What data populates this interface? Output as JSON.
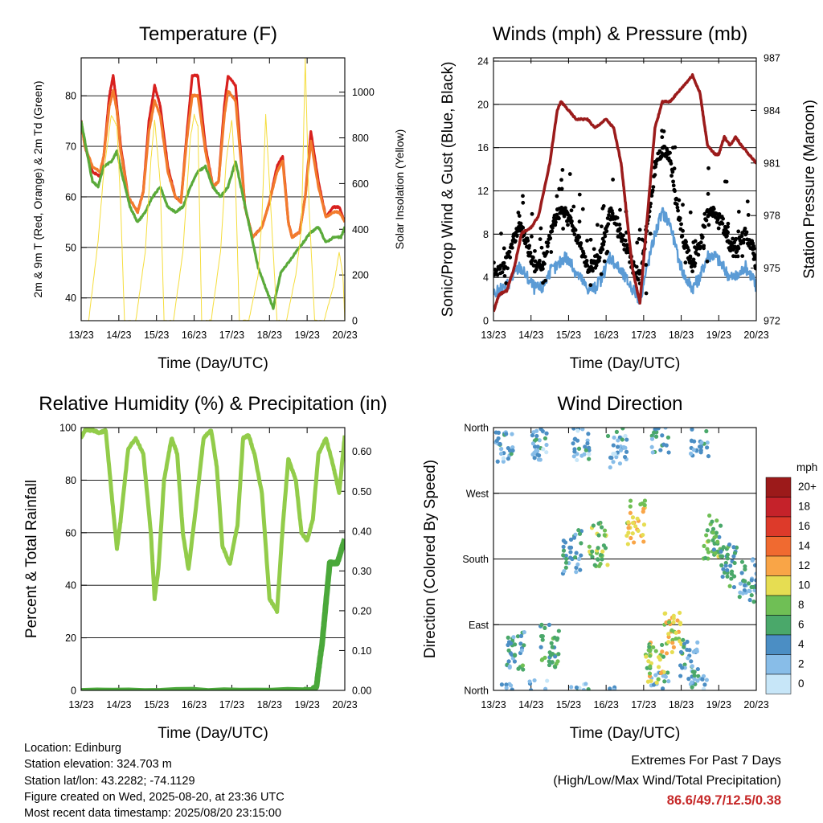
{
  "chart_data": [
    {
      "id": "temperature",
      "type": "line",
      "title": "Temperature (F)",
      "xlabel": "Time (Day/UTC)",
      "ylabel": "2m & 9m T (Red, Orange) & 2m Td (Green)",
      "y2label": "Solar Insolation (Yellow)",
      "x_ticks": [
        "13/23",
        "14/23",
        "15/23",
        "16/23",
        "17/23",
        "18/23",
        "19/23",
        "20/23"
      ],
      "y_ticks": [
        40,
        50,
        60,
        70,
        80
      ],
      "y2_ticks": [
        0,
        200,
        400,
        600,
        800,
        1000
      ],
      "ylim": [
        35.5,
        87.5
      ],
      "y2lim": [
        0,
        1150
      ],
      "xlim": [
        0,
        7
      ],
      "grid": true,
      "series": [
        {
          "color": "#d8201e",
          "x": [
            0,
            0.1,
            0.3,
            0.5,
            0.6,
            0.75,
            0.85,
            0.95,
            1.05,
            1.25,
            1.5,
            1.65,
            1.8,
            1.95,
            2.1,
            2.3,
            2.5,
            2.65,
            2.8,
            2.95,
            3.1,
            3.3,
            3.5,
            3.65,
            3.8,
            3.9,
            4.1,
            4.35,
            4.55,
            4.8,
            5.0,
            5.2,
            5.35,
            5.5,
            5.6,
            5.8,
            5.95,
            6.1,
            6.3,
            6.5,
            6.7,
            6.85,
            7.0
          ],
          "values": [
            75,
            70,
            65,
            64,
            68,
            80,
            84,
            78,
            70,
            60,
            57,
            61,
            75,
            82,
            78,
            66,
            60,
            59,
            72,
            84,
            84,
            70,
            62,
            63,
            78,
            84,
            82,
            58,
            52,
            54,
            59,
            66,
            68,
            55,
            52,
            53,
            60,
            73,
            63,
            56,
            58,
            58,
            55
          ]
        },
        {
          "color": "#f27b2d",
          "x": [
            0,
            0.1,
            0.3,
            0.5,
            0.6,
            0.75,
            0.85,
            0.95,
            1.05,
            1.25,
            1.5,
            1.65,
            1.8,
            1.95,
            2.1,
            2.3,
            2.5,
            2.65,
            2.8,
            2.95,
            3.1,
            3.3,
            3.5,
            3.65,
            3.8,
            3.9,
            4.1,
            4.35,
            4.55,
            4.8,
            5.0,
            5.2,
            5.35,
            5.5,
            5.6,
            5.8,
            5.95,
            6.1,
            6.3,
            6.5,
            6.7,
            6.85,
            7.0
          ],
          "values": [
            75,
            70,
            66,
            65,
            68,
            78,
            81,
            77,
            69,
            60,
            57,
            61,
            73,
            79,
            76,
            65,
            60,
            59,
            71,
            80,
            80,
            69,
            62,
            63,
            76,
            81,
            79,
            58,
            52,
            54,
            59,
            65,
            67,
            55,
            52,
            53,
            60,
            71,
            62,
            56,
            57,
            57,
            55
          ]
        },
        {
          "color": "#5aaa3a",
          "x": [
            0,
            0.15,
            0.3,
            0.45,
            0.6,
            0.8,
            0.95,
            1.1,
            1.3,
            1.5,
            1.7,
            1.9,
            2.1,
            2.3,
            2.5,
            2.7,
            2.9,
            3.1,
            3.3,
            3.5,
            3.7,
            3.9,
            4.1,
            4.3,
            4.5,
            4.7,
            4.9,
            5.1,
            5.3,
            5.5,
            5.7,
            5.9,
            6.1,
            6.3,
            6.5,
            6.7,
            6.9,
            7.0
          ],
          "values": [
            75,
            69,
            63,
            62,
            66,
            67,
            69,
            64,
            58,
            55,
            57,
            60,
            62,
            58,
            57,
            58,
            62,
            65,
            66,
            62,
            60,
            62,
            67,
            60,
            53,
            46,
            42,
            38,
            45,
            47,
            49,
            51,
            53,
            54,
            51,
            52,
            52,
            54
          ]
        },
        {
          "color": "#f5dd3c",
          "axis": "y2",
          "x": [
            0.2,
            0.45,
            0.6,
            0.8,
            0.95,
            1.05,
            1.15,
            1.45,
            1.7,
            1.85,
            1.95,
            2.1,
            2.2,
            2.45,
            2.7,
            2.9,
            3.0,
            3.1,
            3.2,
            3.45,
            3.7,
            3.85,
            4.0,
            4.1,
            4.2,
            4.45,
            4.7,
            4.8,
            4.9,
            5.0,
            5.2,
            5.45,
            5.7,
            5.85,
            5.95,
            6.05,
            6.2,
            6.45,
            6.7,
            6.85,
            6.95,
            7.0
          ],
          "values": [
            0,
            350,
            650,
            900,
            850,
            500,
            0,
            0,
            300,
            700,
            880,
            600,
            0,
            0,
            300,
            800,
            900,
            850,
            0,
            0,
            300,
            700,
            880,
            600,
            0,
            0,
            200,
            450,
            900,
            600,
            0,
            0,
            200,
            400,
            1150,
            500,
            0,
            0,
            150,
            300,
            200,
            0
          ]
        }
      ]
    },
    {
      "id": "winds",
      "type": "line",
      "title": "Winds (mph) & Pressure (mb)",
      "xlabel": "Time (Day/UTC)",
      "ylabel": "Sonic/Prop Wind & Gust (Blue, Black)",
      "y2label": "Station Pressure (Maroon)",
      "x_ticks": [
        "13/23",
        "14/23",
        "15/23",
        "16/23",
        "17/23",
        "18/23",
        "19/23",
        "20/23"
      ],
      "y_ticks": [
        0,
        4,
        8,
        12,
        16,
        20,
        24
      ],
      "y2_ticks": [
        972,
        975,
        978,
        981,
        984,
        987
      ],
      "ylim": [
        0,
        24.3
      ],
      "y2lim": [
        972,
        987
      ],
      "xlim": [
        0,
        7
      ],
      "grid": true,
      "series": [
        {
          "color": "#5b9bd5",
          "x": [
            0,
            0.3,
            0.5,
            0.7,
            0.9,
            1.1,
            1.3,
            1.5,
            1.7,
            1.9,
            2.1,
            2.3,
            2.5,
            2.7,
            2.9,
            3.1,
            3.3,
            3.5,
            3.7,
            3.9,
            4.1,
            4.3,
            4.5,
            4.7,
            4.9,
            5.1,
            5.3,
            5.5,
            5.7,
            5.9,
            6.1,
            6.3,
            6.5,
            6.7,
            6.9,
            7.0
          ],
          "values": [
            2.5,
            3,
            4,
            5,
            4,
            3,
            3,
            4.5,
            5,
            6,
            5,
            4,
            3,
            3,
            4,
            6,
            5,
            4,
            3,
            2,
            5,
            8,
            10,
            9,
            6,
            4,
            3,
            4,
            6,
            6,
            5,
            4,
            4,
            5,
            4,
            3
          ]
        },
        {
          "color": "#000000",
          "x": [
            0,
            0.3,
            0.5,
            0.7,
            0.9,
            1.1,
            1.3,
            1.5,
            1.7,
            1.9,
            2.1,
            2.3,
            2.5,
            2.7,
            2.9,
            3.1,
            3.3,
            3.5,
            3.7,
            3.9,
            4.1,
            4.3,
            4.5,
            4.7,
            4.9,
            5.1,
            5.3,
            5.5,
            5.7,
            5.9,
            6.1,
            6.3,
            6.5,
            6.7,
            6.9,
            7.0
          ],
          "values": [
            4,
            5,
            7,
            9,
            7,
            5,
            5,
            8,
            10,
            10,
            9,
            7,
            5,
            5,
            7,
            10,
            9,
            7,
            5,
            4,
            9,
            14,
            16,
            15,
            10,
            7,
            5,
            7,
            10,
            10,
            9,
            7,
            7,
            8,
            7,
            5
          ]
        },
        {
          "color": "#9b1b1b",
          "axis": "y2",
          "x": [
            0,
            0.15,
            0.35,
            0.55,
            0.75,
            1.0,
            1.2,
            1.5,
            1.7,
            1.8,
            2.0,
            2.2,
            2.5,
            2.7,
            3.0,
            3.2,
            3.4,
            3.5,
            3.6,
            3.7,
            3.8,
            3.9,
            4.1,
            4.3,
            4.5,
            4.7,
            4.9,
            5.1,
            5.3,
            5.5,
            5.6,
            5.7,
            5.9,
            6.0,
            6.15,
            6.3,
            6.45,
            6.6,
            6.8,
            7.0
          ],
          "values": [
            972.5,
            973.5,
            973.7,
            975,
            977,
            977.3,
            978,
            981,
            984,
            984.5,
            984,
            983.5,
            983.5,
            983,
            983.5,
            983,
            981,
            979,
            977,
            975,
            974,
            973,
            978,
            983,
            984.5,
            984.5,
            985,
            985.5,
            986,
            985,
            983.5,
            982,
            981.5,
            981.5,
            982.5,
            982,
            982.5,
            982,
            981.5,
            981
          ]
        }
      ]
    },
    {
      "id": "humidity",
      "type": "line",
      "title": "Relative Humidity (%) & Precipitation (in)",
      "xlabel": "Time (Day/UTC)",
      "ylabel": "Percent & Total Rainfall",
      "x_ticks": [
        "13/23",
        "14/23",
        "15/23",
        "16/23",
        "17/23",
        "18/23",
        "19/23",
        "20/23"
      ],
      "y_ticks": [
        0,
        20,
        40,
        60,
        80,
        100
      ],
      "y2_ticks": [
        "0.00",
        "0.10",
        "0.20",
        "0.30",
        "0.40",
        "0.50",
        "0.60"
      ],
      "ylim": [
        0,
        100
      ],
      "y2lim": [
        0,
        0.66
      ],
      "xlim": [
        0,
        7
      ],
      "grid": true,
      "series": [
        {
          "color": "#92cc4a",
          "x": [
            0,
            0.1,
            0.3,
            0.5,
            0.65,
            0.8,
            0.95,
            1.05,
            1.25,
            1.45,
            1.65,
            1.85,
            1.95,
            2.05,
            2.2,
            2.4,
            2.55,
            2.7,
            2.85,
            3.05,
            3.25,
            3.45,
            3.6,
            3.75,
            3.95,
            4.15,
            4.3,
            4.45,
            4.6,
            4.8,
            5.0,
            5.2,
            5.35,
            5.5,
            5.7,
            5.85,
            6.0,
            6.15,
            6.3,
            6.5,
            6.7,
            6.85,
            7.0
          ],
          "values": [
            96,
            99,
            99,
            98,
            99,
            76,
            54,
            65,
            92,
            96,
            90,
            60,
            35,
            46,
            80,
            96,
            90,
            60,
            46,
            70,
            96,
            99,
            85,
            55,
            48,
            63,
            96,
            97,
            90,
            75,
            35,
            30,
            62,
            88,
            80,
            60,
            57,
            65,
            90,
            96,
            85,
            75,
            97
          ]
        },
        {
          "color": "#4aa83a",
          "axis": "y2",
          "x": [
            0,
            5.9,
            6.1,
            6.25,
            6.3,
            6.4,
            6.5,
            6.6,
            6.7,
            6.8,
            6.9,
            7.0
          ],
          "values": [
            0,
            0,
            0,
            0.01,
            0.05,
            0.12,
            0.22,
            0.32,
            0.32,
            0.32,
            0.35,
            0.38
          ]
        }
      ]
    },
    {
      "id": "direction",
      "type": "scatter",
      "title": "Wind Direction",
      "xlabel": "Time (Day/UTC)",
      "ylabel": "Direction (Colored By Speed)",
      "x_ticks": [
        "13/23",
        "14/23",
        "15/23",
        "16/23",
        "17/23",
        "18/23",
        "19/23",
        "20/23"
      ],
      "y_ticks": [
        "North",
        "East",
        "South",
        "West",
        "North"
      ],
      "ylim": [
        0,
        360
      ],
      "xlim": [
        0,
        7
      ],
      "grid": true,
      "legend_title": "mph",
      "legend_labels": [
        "20+",
        "18",
        "16",
        "14",
        "12",
        "10",
        "8",
        "6",
        "4",
        "2",
        "0"
      ],
      "legend_colors": [
        "#9c1a1a",
        "#c5222a",
        "#dd3a2a",
        "#f06a30",
        "#f9a547",
        "#e6dd52",
        "#6fbf55",
        "#4aa86a",
        "#4b8ec4",
        "#88bde8",
        "#c7e6f8"
      ],
      "legend_placement": "right",
      "clusters": [
        {
          "x": 0.3,
          "dir": 340,
          "speed": 3
        },
        {
          "x": 1.2,
          "dir": 345,
          "speed": 3
        },
        {
          "x": 2.3,
          "dir": 340,
          "speed": 3
        },
        {
          "x": 3.3,
          "dir": 335,
          "speed": 3
        },
        {
          "x": 4.45,
          "dir": 355,
          "speed": 4
        },
        {
          "x": 5.5,
          "dir": 350,
          "speed": 3
        },
        {
          "x": 0.6,
          "dir": 50,
          "speed": 5
        },
        {
          "x": 1.5,
          "dir": 60,
          "speed": 6
        },
        {
          "x": 2.1,
          "dir": 190,
          "speed": 4
        },
        {
          "x": 2.8,
          "dir": 200,
          "speed": 8
        },
        {
          "x": 3.8,
          "dir": 230,
          "speed": 10
        },
        {
          "x": 4.3,
          "dir": 40,
          "speed": 9
        },
        {
          "x": 4.8,
          "dir": 80,
          "speed": 10
        },
        {
          "x": 5.2,
          "dir": 40,
          "speed": 4
        },
        {
          "x": 5.8,
          "dir": 210,
          "speed": 7
        },
        {
          "x": 6.3,
          "dir": 170,
          "speed": 5
        },
        {
          "x": 6.8,
          "dir": 150,
          "speed": 4
        }
      ]
    }
  ],
  "info": {
    "location": "Location: Edinburg",
    "elevation": "Station elevation: 324.703 m",
    "latlon": "Station lat/lon: 43.2282; -74.1129",
    "created": "Figure created on Wed, 2025-08-20, at 23:36 UTC",
    "recent": "Most recent data timestamp: 2025/08/20 23:15:00"
  },
  "extremes": {
    "title": "Extremes For Past 7 Days",
    "subtitle": "(High/Low/Max Wind/Total Precipitation)",
    "values": "86.6/49.7/12.5/0.38"
  }
}
